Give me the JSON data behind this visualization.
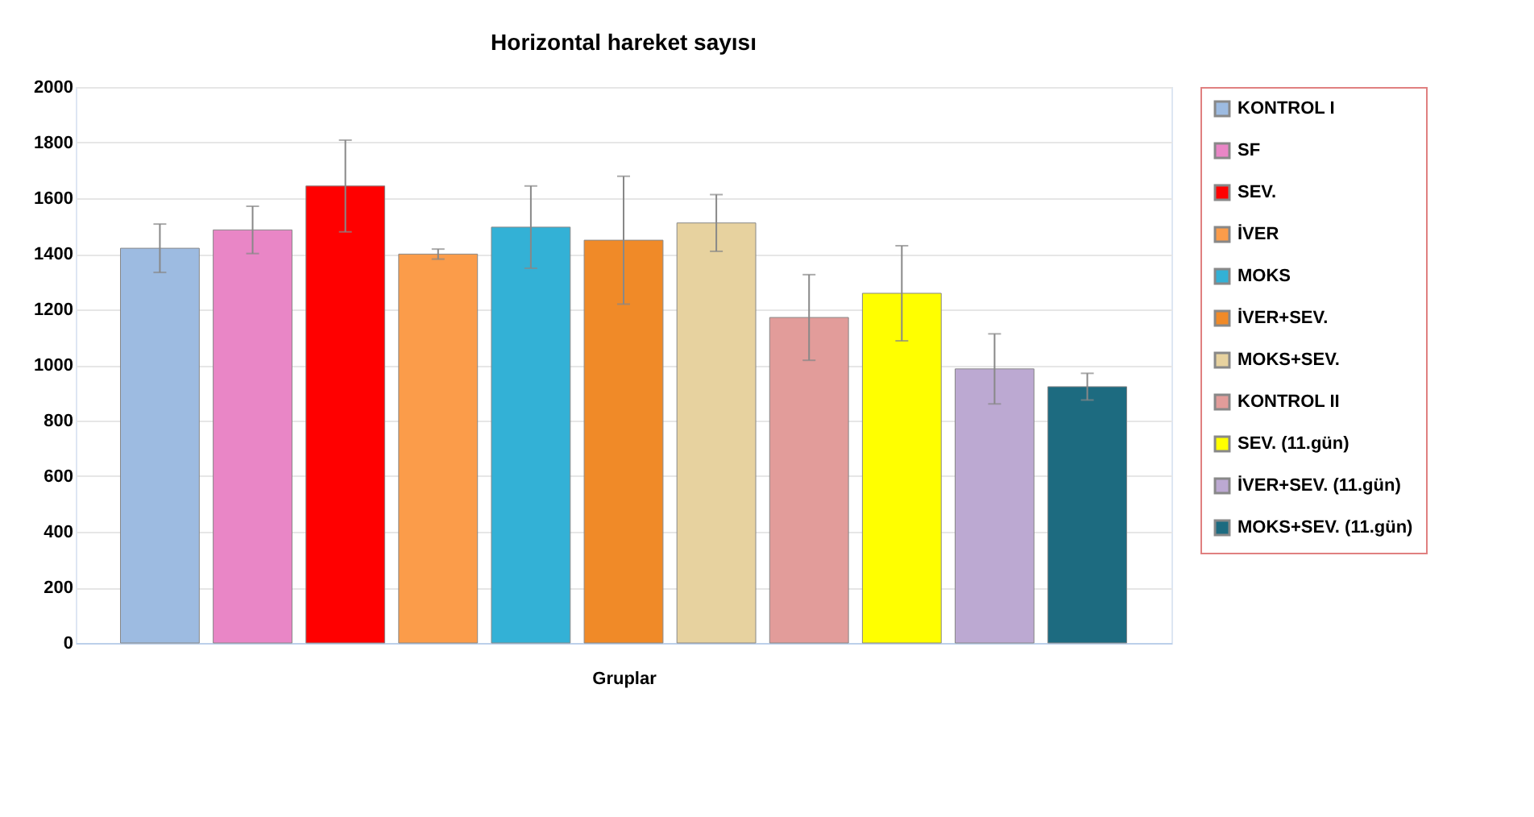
{
  "chart_data": {
    "type": "bar",
    "title": "Horizontal hareket sayısı",
    "xlabel": "Gruplar",
    "categories": [
      null
    ],
    "ylim": [
      0,
      2000
    ],
    "yticks": [
      0,
      200,
      400,
      600,
      800,
      1000,
      1200,
      1400,
      1600,
      1800,
      2000
    ],
    "grid": "y",
    "legend": "right",
    "series": [
      {
        "name": "KONTROL I",
        "color": "#9dbbe1",
        "values": [
          1420
        ],
        "errors": [
          87
        ]
      },
      {
        "name": "SF",
        "color": "#e986c6",
        "values": [
          1486
        ],
        "errors": [
          85
        ]
      },
      {
        "name": "SEV.",
        "color": "#ff0000",
        "values": [
          1644
        ],
        "errors": [
          165
        ]
      },
      {
        "name": "İVER",
        "color": "#fb9c4a",
        "values": [
          1399
        ],
        "errors": [
          18
        ]
      },
      {
        "name": "MOKS",
        "color": "#33b1d6",
        "values": [
          1496
        ],
        "errors": [
          148
        ]
      },
      {
        "name": "İVER+SEV.",
        "color": "#f08a28",
        "values": [
          1449
        ],
        "errors": [
          230
        ]
      },
      {
        "name": "MOKS+SEV.",
        "color": "#e7d29f",
        "values": [
          1511
        ],
        "errors": [
          102
        ]
      },
      {
        "name": "KONTROL II",
        "color": "#e29c9a",
        "values": [
          1171
        ],
        "errors": [
          154
        ]
      },
      {
        "name": "SEV. (11.gün)",
        "color": "#ffff00",
        "values": [
          1258
        ],
        "errors": [
          171
        ]
      },
      {
        "name": "İVER+SEV. (11.gün)",
        "color": "#bca9d2",
        "values": [
          986
        ],
        "errors": [
          126
        ]
      },
      {
        "name": "MOKS+SEV. (11.gün)",
        "color": "#1d6b80",
        "values": [
          922
        ],
        "errors": [
          48
        ]
      }
    ]
  }
}
